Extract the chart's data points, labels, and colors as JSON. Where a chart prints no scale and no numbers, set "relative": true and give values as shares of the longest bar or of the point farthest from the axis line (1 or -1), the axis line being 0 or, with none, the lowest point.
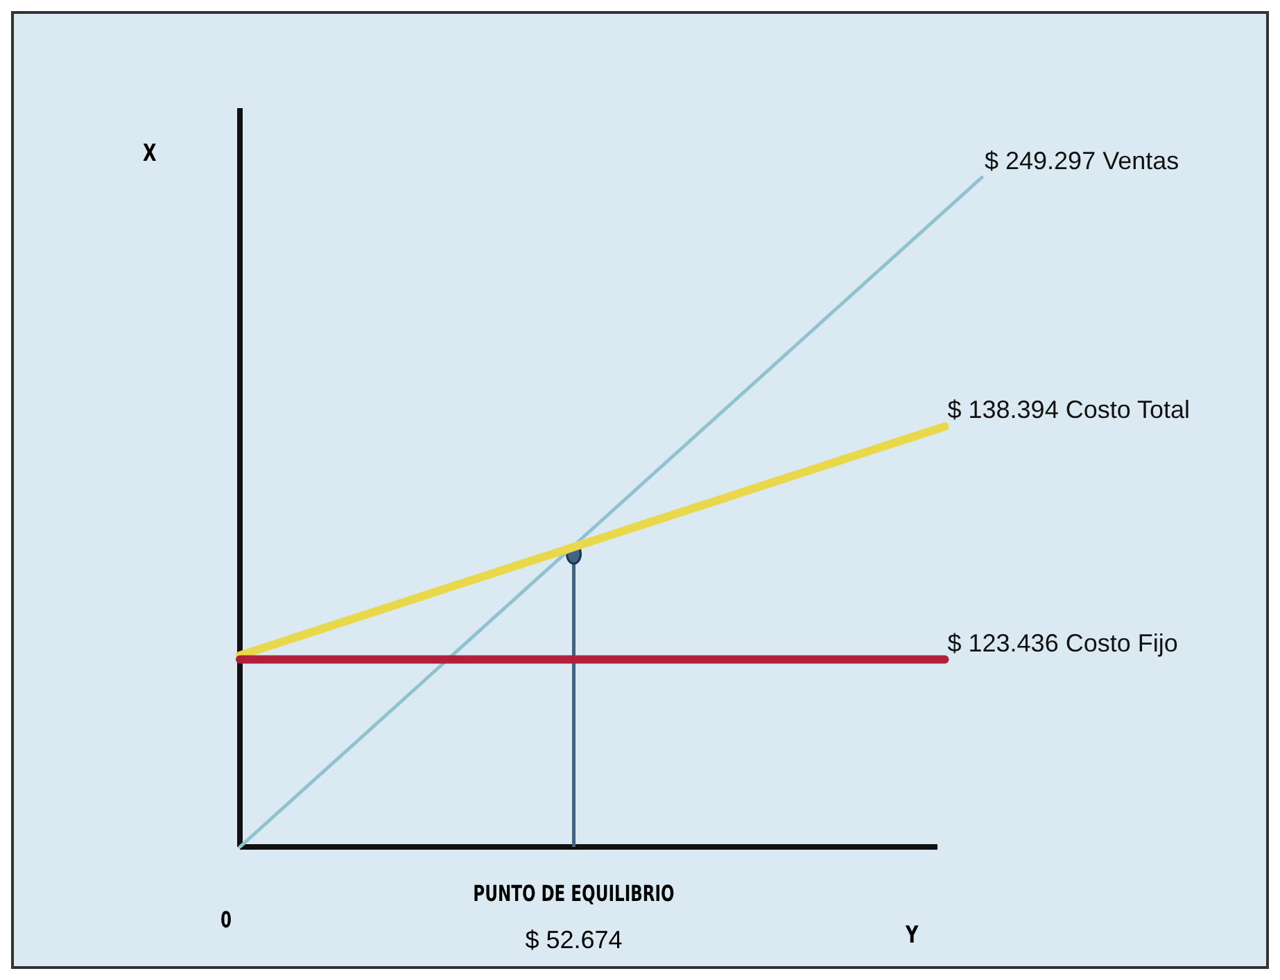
{
  "chart_data": {
    "type": "line",
    "relative": true,
    "xlabel": "Y",
    "ylabel": "X",
    "marker": "none",
    "line_style": "solid",
    "categories": [
      null,
      null,
      null,
      null,
      null,
      null,
      null,
      null,
      null,
      null,
      null,
      null,
      null,
      null,
      null,
      null,
      null,
      null,
      null,
      null,
      null
    ],
    "series": [
      {
        "name": "$ 249.297 Ventas",
        "color": "#8fc3cf",
        "values": [
          0,
          0.05,
          0.1,
          0.15,
          0.2,
          0.25,
          0.3,
          0.35,
          0.4,
          0.45,
          0.5,
          0.55,
          0.6,
          0.65,
          0.7,
          0.75,
          0.8,
          0.85,
          0.9,
          0.95,
          1
        ]
      },
      {
        "name": "$ 138.394 Costo Total",
        "color": "#e8d84a",
        "values": [
          0.286,
          0.304,
          0.322,
          0.34,
          0.358,
          0.376,
          0.394,
          0.412,
          0.43,
          0.448,
          0.466,
          0.484,
          0.502,
          0.52,
          0.538,
          0.556,
          0.574,
          0.592,
          0.61,
          0.628,
          null
        ]
      },
      {
        "name": "$ 123.436 Costo Fijo",
        "color": "#b0203a",
        "values": [
          0.28,
          0.28,
          0.28,
          0.28,
          0.28,
          0.28,
          0.28,
          0.28,
          0.28,
          0.28,
          0.28,
          0.28,
          0.28,
          0.28,
          0.28,
          0.28,
          0.28,
          0.28,
          0.28,
          0.28,
          null
        ]
      }
    ],
    "annotations": [
      "0",
      "PUNTO DE EQUILIBRIO",
      "$ 52.674"
    ]
  }
}
